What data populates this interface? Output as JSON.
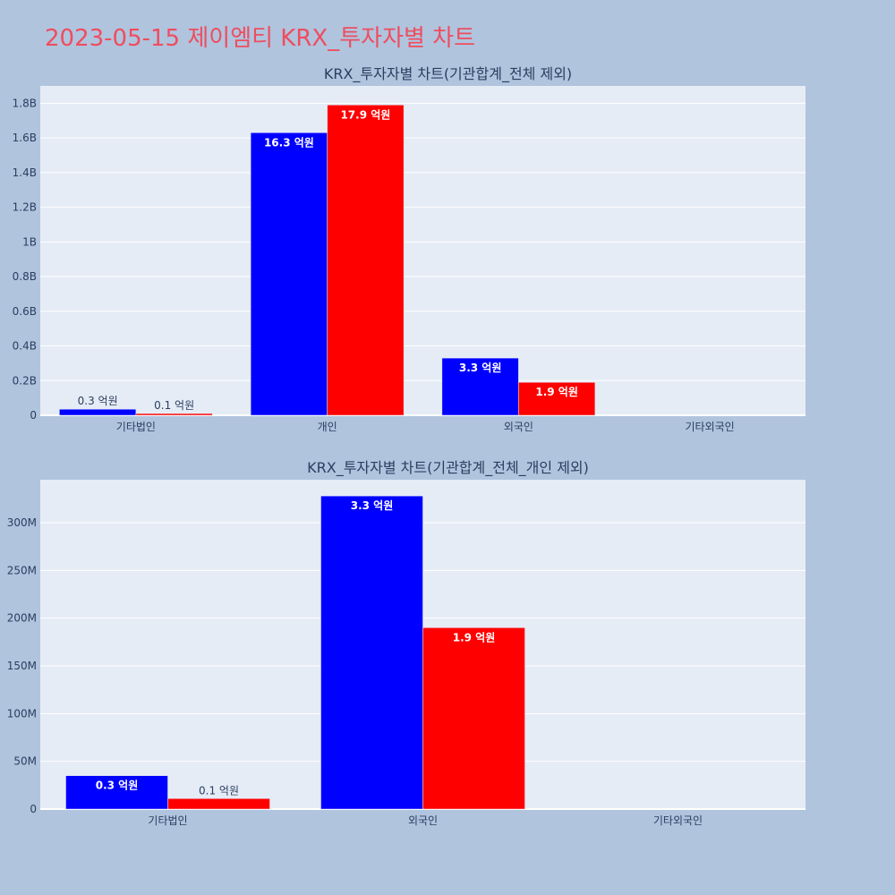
{
  "page": {
    "title": "2023-05-15 제이엠티 KRX_투자자별 차트"
  },
  "chart_data": [
    {
      "type": "bar",
      "title": "KRX_투자자별 차트(기관합계_전체 제외)",
      "categories": [
        "기타법인",
        "개인",
        "외국인",
        "기타외국인"
      ],
      "series": [
        {
          "color": "#0000ff",
          "values": [
            35000000,
            1630000000,
            330000000,
            0
          ],
          "labels": [
            "0.3 억원",
            "16.3 억원",
            "3.3 억원",
            ""
          ]
        },
        {
          "color": "#ff0000",
          "values": [
            10000000,
            1790000000,
            190000000,
            0
          ],
          "labels": [
            "0.1 억원",
            "17.9 억원",
            "1.9 억원",
            ""
          ]
        }
      ],
      "ylim": [
        0,
        1900000000
      ],
      "yticks": [
        0,
        200000000,
        400000000,
        600000000,
        800000000,
        1000000000,
        1200000000,
        1400000000,
        1600000000,
        1800000000
      ],
      "ytick_labels": [
        "0",
        "0.2B",
        "0.4B",
        "0.6B",
        "0.8B",
        "1B",
        "1.2B",
        "1.4B",
        "1.6B",
        "1.8B"
      ],
      "grid": true,
      "background": "#e5ecf6"
    },
    {
      "type": "bar",
      "title": "KRX_투자자별 차트(기관합계_전체_개인 제외)",
      "categories": [
        "기타법인",
        "외국인",
        "기타외국인"
      ],
      "series": [
        {
          "color": "#0000ff",
          "values": [
            35000000,
            328000000,
            0
          ],
          "labels": [
            "0.3 억원",
            "3.3 억원",
            ""
          ]
        },
        {
          "color": "#ff0000",
          "values": [
            11000000,
            190000000,
            0
          ],
          "labels": [
            "0.1 억원",
            "1.9 억원",
            ""
          ]
        }
      ],
      "ylim": [
        0,
        345000000
      ],
      "yticks": [
        0,
        50000000,
        100000000,
        150000000,
        200000000,
        250000000,
        300000000
      ],
      "ytick_labels": [
        "0",
        "50M",
        "100M",
        "150M",
        "200M",
        "250M",
        "300M"
      ],
      "grid": true,
      "background": "#e5ecf6"
    }
  ]
}
